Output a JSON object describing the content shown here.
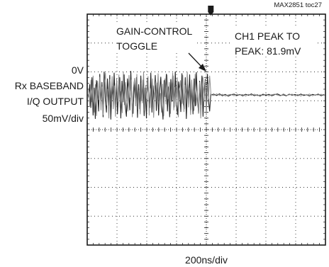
{
  "chart_data": {
    "type": "line",
    "figure_id": "MAX2851 toc27",
    "title": "",
    "y_channel_label": [
      "0V",
      "Rx BASEBAND",
      "I/Q OUTPUT",
      "50mV/div"
    ],
    "xlabel": "200ns/div",
    "grid": true,
    "x_divisions": 8,
    "y_divisions": 8,
    "annotations": {
      "gain_control": [
        "GAIN-CONTROL",
        "TOGGLE"
      ],
      "peak_to_peak": [
        "CH1 PEAK TO",
        "PEAK: 81.9mV"
      ]
    },
    "series": [
      {
        "channel": "I",
        "values_mV": [
          -4,
          18,
          -22,
          30,
          -35,
          12,
          -41,
          25,
          8,
          -28,
          36,
          -15,
          22,
          -38,
          40,
          -6,
          -30,
          28,
          -18,
          34,
          -42,
          15,
          -9,
          38,
          -25,
          20,
          -33,
          10,
          30,
          -40,
          24,
          -12,
          35,
          -20,
          -37,
          28,
          6,
          -26,
          41,
          -14,
          -32,
          22,
          -5,
          30,
          -39,
          18,
          -24,
          33,
          -10,
          26,
          -36,
          12,
          -40,
          29,
          4,
          -22,
          38,
          -30,
          16,
          -8,
          34,
          -27,
          21,
          -35,
          9,
          31,
          -18,
          -42,
          25,
          -3,
          36,
          -28,
          14,
          -38,
          27,
          -11,
          33,
          -21,
          40,
          -16,
          -34,
          23,
          7,
          -29,
          37,
          -13,
          -24,
          30,
          -41,
          19,
          -6,
          35,
          -26,
          12,
          -33,
          28,
          -19,
          39,
          -9,
          -31,
          24,
          -17,
          33,
          -37,
          8,
          27,
          -22,
          36,
          -12,
          -28,
          2
        ],
        "after_toggle_mV": [
          0,
          1.5,
          -1,
          2,
          -1.5,
          1,
          -2,
          0.5,
          1.5,
          -1,
          0.8,
          -1.6,
          1.2,
          -0.5,
          1.8,
          -1.2,
          0.3,
          -1.8,
          1.4,
          -0.7,
          1.1,
          -1.4,
          0.6,
          1.7,
          -0.9,
          0.2,
          -1.5,
          1.3,
          -0.4,
          0.9,
          -1.1,
          1.6,
          -0.8,
          0.4,
          -1.7,
          1,
          -0.2,
          1.5,
          -1.3,
          0.7
        ]
      },
      {
        "channel": "Q",
        "values_mV": [
          10,
          -20,
          26,
          -12,
          33,
          -30,
          18,
          -36,
          24,
          -8,
          31,
          -26,
          14,
          -34,
          20,
          38,
          -18,
          10,
          -40,
          27,
          -6,
          32,
          -24,
          16,
          -37,
          29,
          -11,
          35,
          -21,
          6,
          -31,
          39,
          -17,
          22,
          -9,
          -28,
          34,
          -4,
          26,
          -38,
          13,
          29,
          -19,
          36,
          -25,
          8,
          -33,
          21,
          -14,
          40,
          -27,
          17,
          -6,
          32,
          -35,
          11,
          -20,
          28,
          -39,
          15,
          24,
          -12,
          37,
          -23,
          3,
          -30,
          19,
          -36,
          28,
          -16,
          35,
          -7,
          22,
          -32,
          10,
          38,
          -26,
          13,
          -19,
          30,
          -38,
          9,
          25,
          -15,
          34,
          -29,
          17,
          -5,
          39,
          -21,
          12,
          -34,
          26,
          -10,
          -27,
          36,
          -18,
          7,
          -32,
          22,
          -40,
          14,
          31,
          -11,
          25,
          -35,
          19,
          -6,
          33,
          4
        ],
        "after_toggle_mV": [
          0.5,
          -1,
          1.8,
          -0.6,
          1.2,
          -1.7,
          0.3,
          1,
          -1.4,
          1.6,
          -0.2,
          0.8,
          -1.9,
          1.1,
          -0.7,
          1.5,
          -1.2,
          0.4,
          -0.9,
          1.7,
          -1.5,
          0.6,
          1.3,
          -0.3,
          -1.6,
          1.9,
          -0.8,
          0.2,
          1.4,
          -1.1,
          0.7,
          -1.8,
          1,
          -0.4,
          1.6,
          -1.3,
          0.5,
          -0.1,
          1.2,
          -0.9
        ]
      }
    ]
  }
}
